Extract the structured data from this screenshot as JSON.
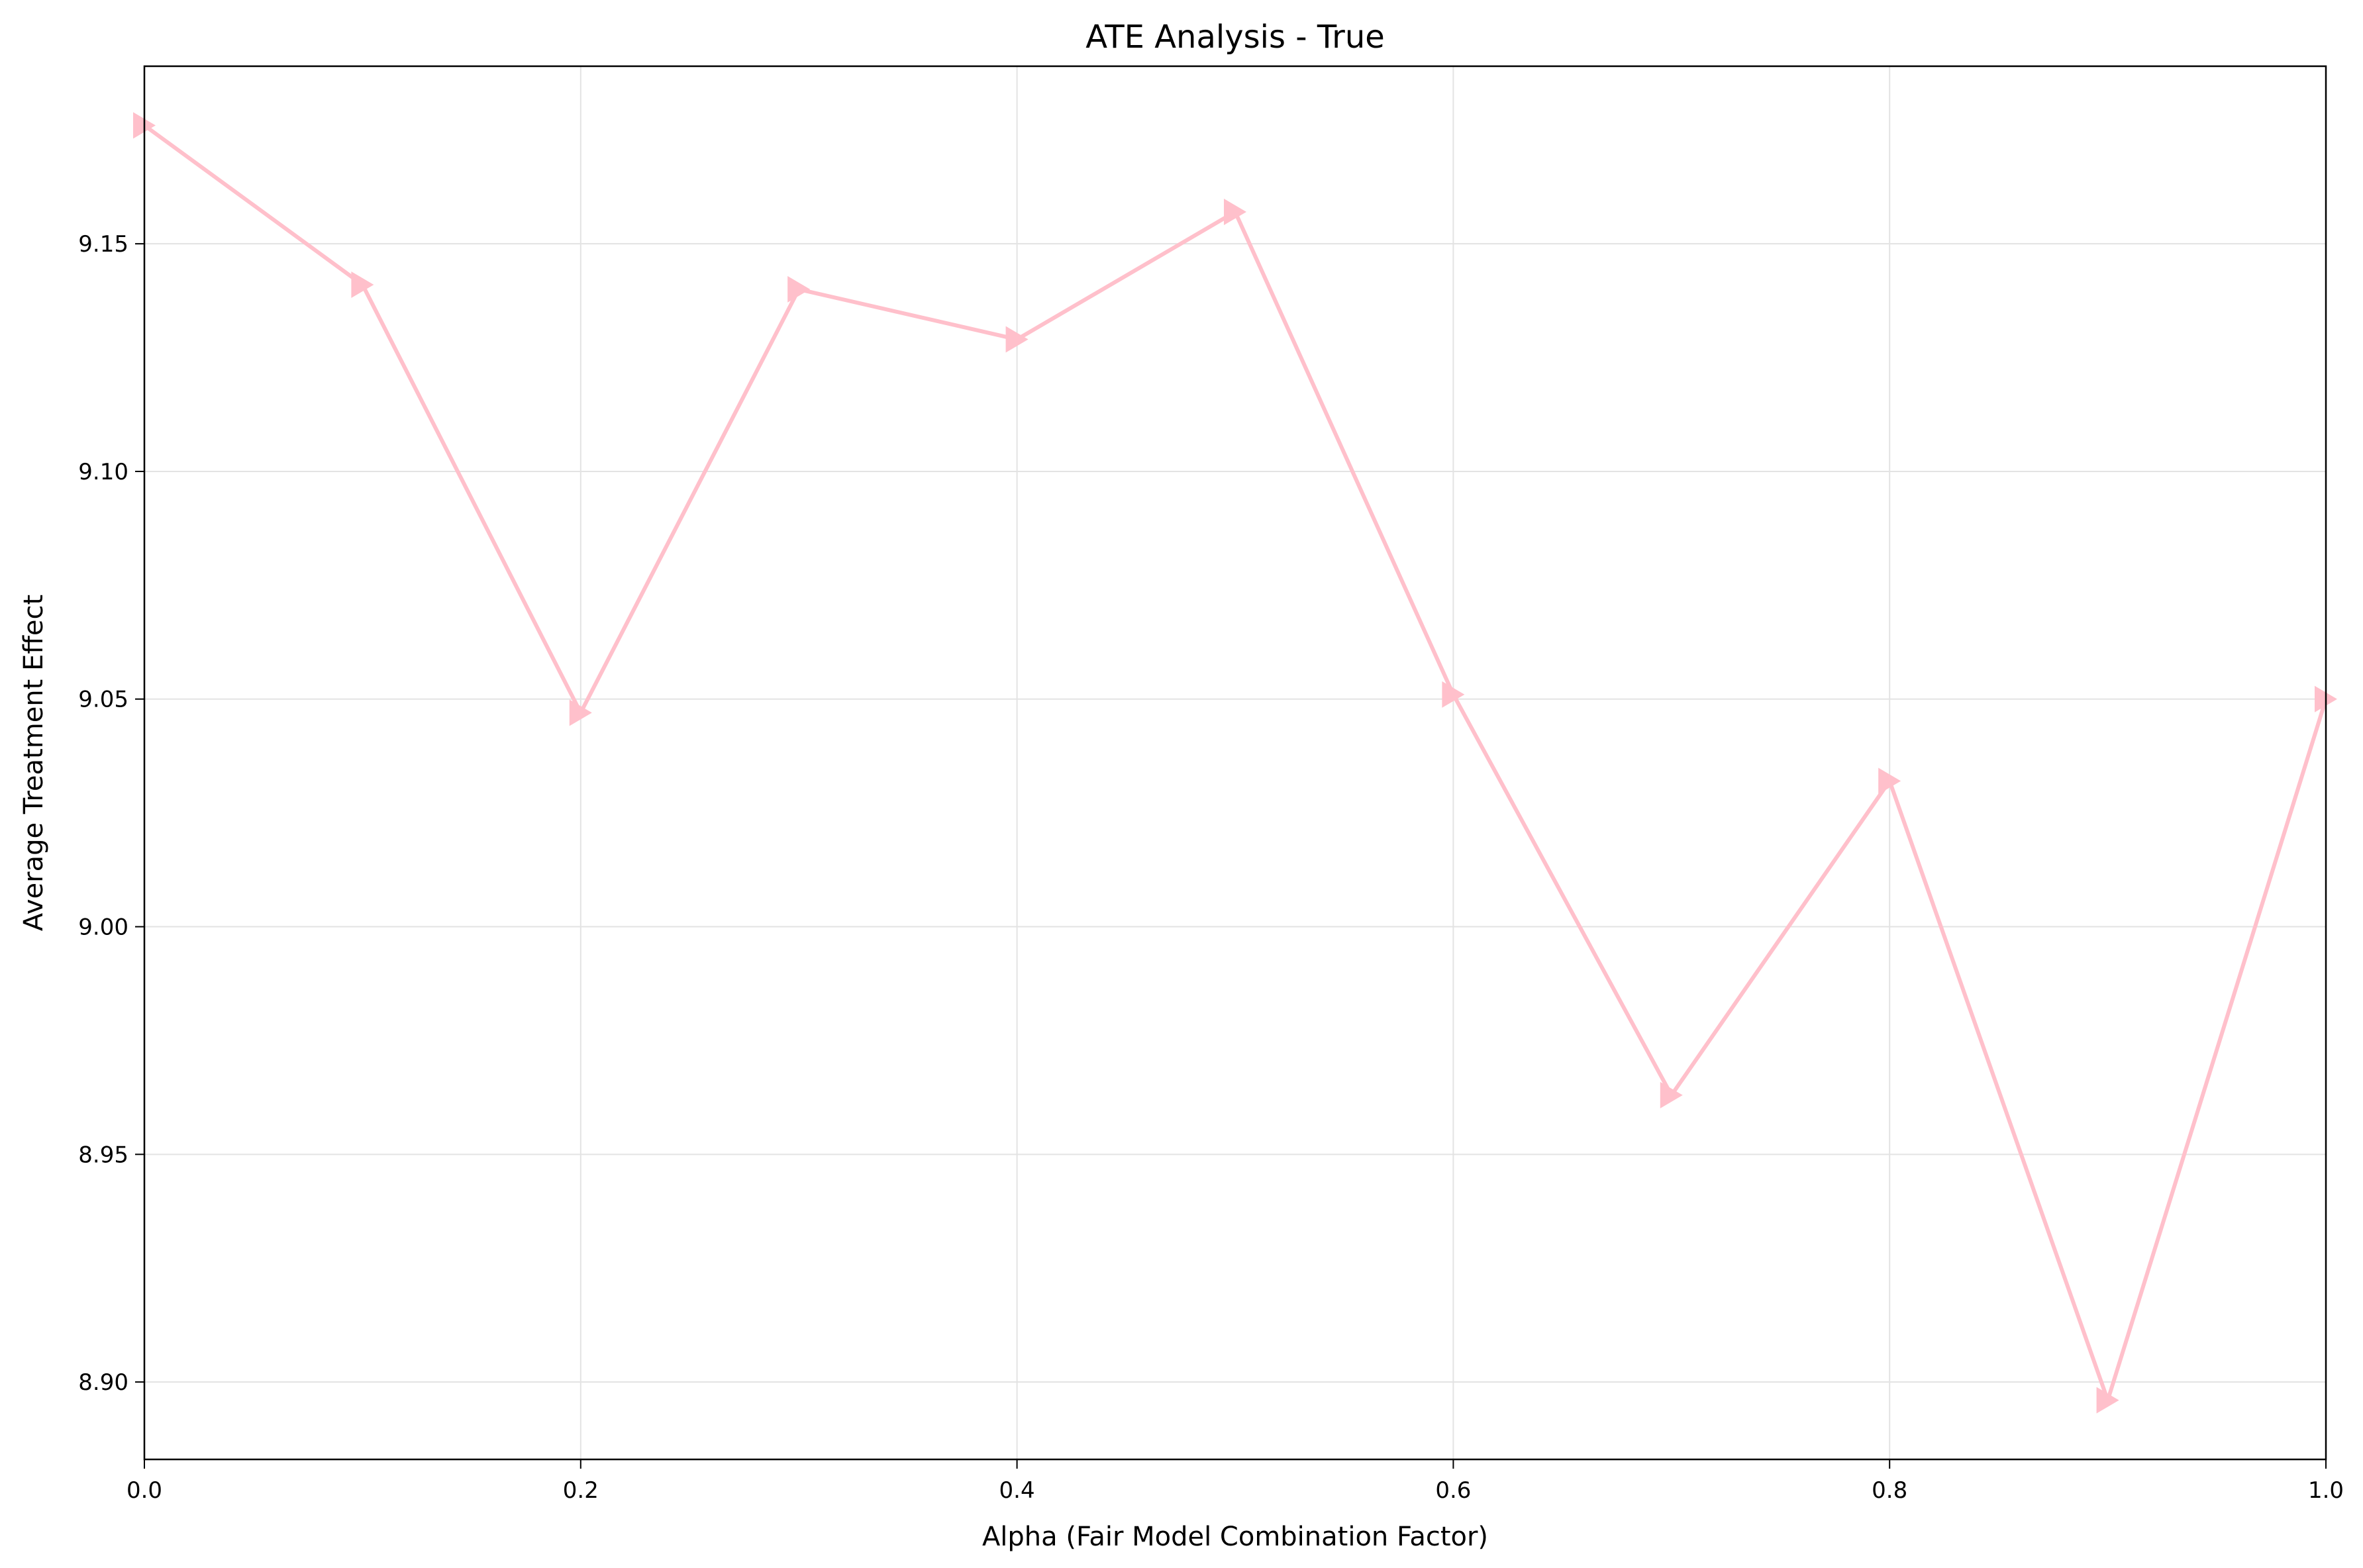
{
  "chart_data": {
    "type": "line",
    "title": "ATE Analysis - True",
    "xlabel": "Alpha (Fair Model Combination Factor)",
    "ylabel": "Average Treatment Effect",
    "xlim": [
      0.0,
      1.0
    ],
    "ylim": [
      8.883,
      9.189
    ],
    "xticks": [
      0.0,
      0.2,
      0.4,
      0.6,
      0.8,
      1.0
    ],
    "xtick_labels": [
      "0.0",
      "0.2",
      "0.4",
      "0.6",
      "0.8",
      "1.0"
    ],
    "yticks": [
      8.9,
      8.95,
      9.0,
      9.05,
      9.1,
      9.15
    ],
    "ytick_labels": [
      "8.90",
      "8.95",
      "9.00",
      "9.05",
      "9.10",
      "9.15"
    ],
    "grid": true,
    "marker": "triangle-right",
    "line_color": "#ffc0cb",
    "series": [
      {
        "x": [
          0.0,
          0.1,
          0.2,
          0.3,
          0.4,
          0.5,
          0.6,
          0.7,
          0.8,
          0.9,
          1.0
        ],
        "values": [
          9.176,
          9.141,
          9.047,
          9.14,
          9.129,
          9.157,
          9.051,
          8.963,
          9.032,
          8.896,
          9.05
        ]
      }
    ]
  }
}
